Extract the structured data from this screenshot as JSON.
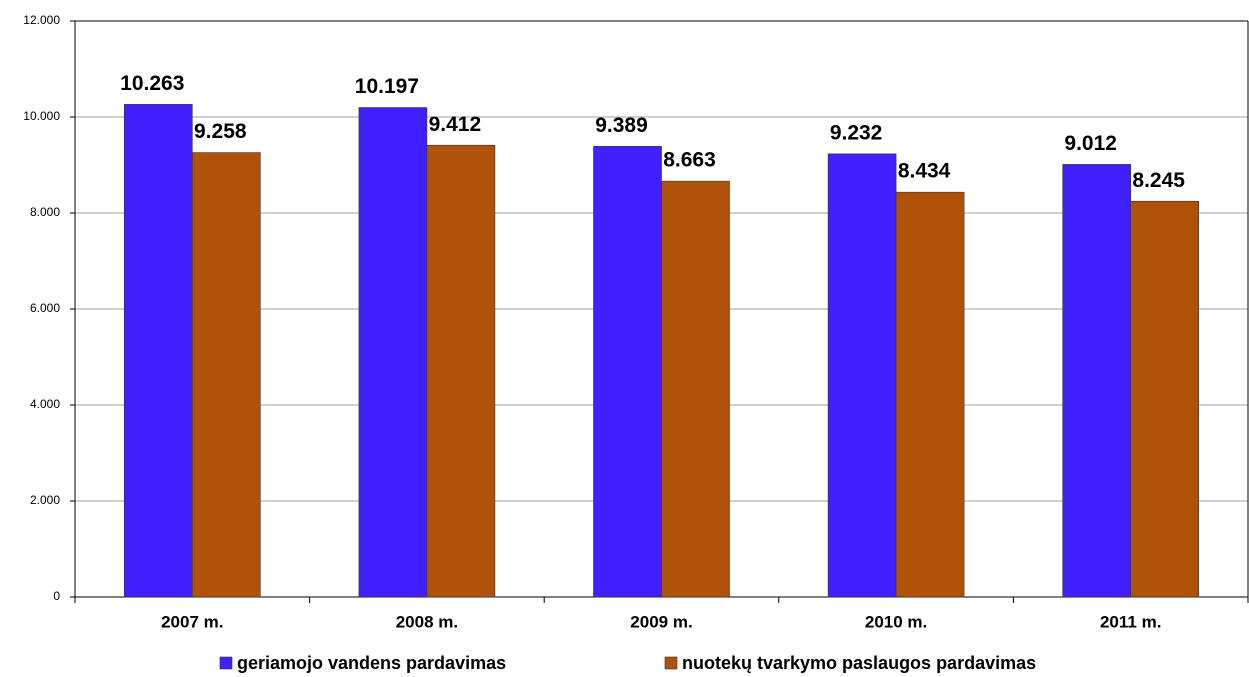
{
  "chart_data": {
    "type": "bar",
    "categories": [
      "2007 m.",
      "2008 m.",
      "2009 m.",
      "2010 m.",
      "2011 m."
    ],
    "series": [
      {
        "name": "geriamojo vandens pardavimas",
        "color": "#4020ff",
        "values": [
          10263,
          10197,
          9389,
          9232,
          9012
        ],
        "value_labels": [
          "10.263",
          "10.197",
          "9.389",
          "9.232",
          "9.012"
        ]
      },
      {
        "name": "nuotekų tvarkymo paslaugos pardavimas",
        "color": "#b0520a",
        "values": [
          9258,
          9412,
          8663,
          8434,
          8245
        ],
        "value_labels": [
          "9.258",
          "9.412",
          "8.663",
          "8.434",
          "8.245"
        ]
      }
    ],
    "ylim": [
      0,
      12000
    ],
    "yticks": [
      0,
      {
        "value": 2000,
        "label": "2.000"
      },
      {
        "value": 4000,
        "label": "4.000"
      },
      {
        "value": 6000,
        "label": "6.000"
      },
      {
        "value": 8000,
        "label": "8.000"
      },
      {
        "value": 10000,
        "label": "10.000"
      },
      {
        "value": 12000,
        "label": "12.000"
      }
    ],
    "grid": true,
    "legend": "bottom"
  }
}
